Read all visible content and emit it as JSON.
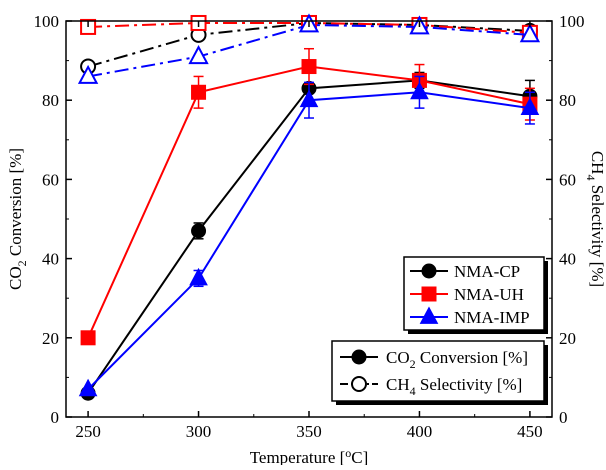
{
  "chart_data": {
    "type": "line",
    "x": [
      250,
      300,
      350,
      400,
      450
    ],
    "xlabel": "Temperature [°C]",
    "xlabel_parts": {
      "pre": "Temperature [",
      "sup": "o",
      "post": "C]"
    },
    "ylabel_left": "CO2 Conversion [%]",
    "ylabel_left_parts": {
      "pre": "CO",
      "sub": "2",
      "post": " Conversion [%]"
    },
    "ylabel_right": "CH4 Selectivity [%]",
    "ylabel_right_parts": {
      "pre": "CH",
      "sub": "4",
      "post": " Selectivity [%]"
    },
    "xlim": [
      240,
      460
    ],
    "ylim": [
      0,
      100
    ],
    "x_ticks": [
      "250",
      "300",
      "350",
      "400",
      "450"
    ],
    "y_ticks": [
      "0",
      "20",
      "40",
      "60",
      "80",
      "100"
    ],
    "grid": false,
    "series": [
      {
        "name": "NMA-CP",
        "color": "#000000",
        "marker": "circle",
        "metric": "conversion",
        "values": [
          6,
          47,
          83,
          85,
          81
        ],
        "errors": [
          0,
          2,
          0,
          2,
          4
        ]
      },
      {
        "name": "NMA-UH",
        "color": "#ff0000",
        "marker": "square",
        "metric": "conversion",
        "values": [
          20,
          82,
          88.5,
          85,
          79
        ],
        "errors": [
          0,
          4,
          4.5,
          4,
          4
        ]
      },
      {
        "name": "NMA-IMP",
        "color": "#0000ff",
        "marker": "triangle",
        "metric": "conversion",
        "values": [
          7,
          35,
          80,
          82,
          78
        ],
        "errors": [
          0,
          2,
          4.5,
          4,
          4
        ]
      },
      {
        "name": "NMA-CP",
        "color": "#000000",
        "marker": "circle",
        "metric": "selectivity",
        "values": [
          88.5,
          96.5,
          99.5,
          99,
          97.5
        ],
        "errors": []
      },
      {
        "name": "NMA-UH",
        "color": "#ff0000",
        "marker": "square",
        "metric": "selectivity",
        "values": [
          98.5,
          99.5,
          99.5,
          99,
          97
        ],
        "errors": []
      },
      {
        "name": "NMA-IMP",
        "color": "#0000ff",
        "marker": "triangle",
        "metric": "selectivity",
        "values": [
          86,
          91,
          99,
          98.5,
          96.5
        ],
        "errors": []
      }
    ],
    "legend_samples": [
      "NMA-CP",
      "NMA-UH",
      "NMA-IMP"
    ],
    "legend_metrics": {
      "conversion": {
        "pre": "CO",
        "sub": "2",
        "post": " Conversion [%]"
      },
      "selectivity": {
        "pre": "CH",
        "sub": "4",
        "post": " Selectivity [%]"
      }
    },
    "legend_placement": "bottom-right"
  }
}
